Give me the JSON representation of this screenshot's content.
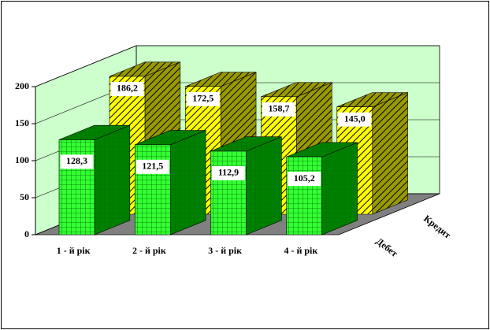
{
  "chart_data": {
    "type": "bar3d",
    "categories": [
      "1 - й рік",
      "2 - й рік",
      "3 - й рік",
      "4 - й рік"
    ],
    "series": [
      {
        "name": "Дебет",
        "color": "#33ff33",
        "values": [
          128.3,
          121.5,
          112.9,
          105.2
        ],
        "value_labels": [
          "128,3",
          "121,5",
          "112,9",
          "105,2"
        ]
      },
      {
        "name": "Кредит",
        "color": "#ffff00",
        "values": [
          186.2,
          172.5,
          158.7,
          145.0
        ],
        "value_labels": [
          "186,2",
          "172,5",
          "158,7",
          "145,0"
        ]
      }
    ],
    "ylim": [
      0,
      200
    ],
    "yticks": [
      0,
      50,
      100,
      150,
      200
    ],
    "grid": true
  }
}
